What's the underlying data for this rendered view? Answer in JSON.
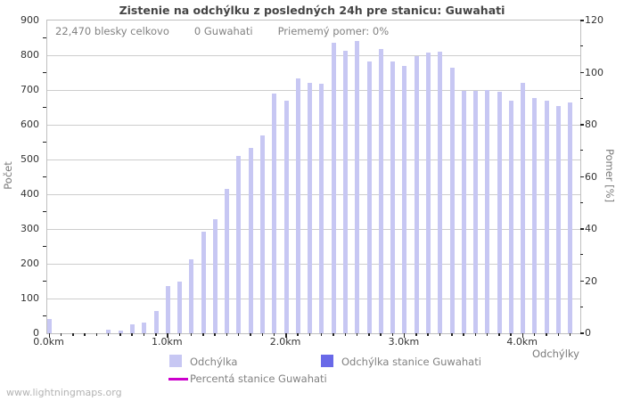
{
  "page": {
    "watermark": "www.lightningmaps.org"
  },
  "chart": {
    "title": "Zistenie na odchýlku z posledných 24h pre stanicu: Guwahati",
    "stats": {
      "total": "22,470 blesky celkovo",
      "station": "0 Guwahati",
      "ratio": "Priememý pomer: 0%"
    },
    "ylabel_left": "Počet",
    "ylabel_right": "Pomer [%]",
    "xlabel": "Odchýlky",
    "legend": {
      "item1": "Odchýlka",
      "item2": "Odchýlka stanice Guwahati",
      "item3": "Percentá stanice Guwahati"
    },
    "colors": {
      "bar_light": "#c7c7f3",
      "bar_dark": "#6969e8",
      "percent_line": "#cc00cc",
      "gridline": "#cdcdcd"
    }
  },
  "chart_data": {
    "type": "bar",
    "title": "Zistenie na odchýlku z posledných 24h pre stanicu: Guwahati",
    "xlabel": "Odchýlky",
    "ylabel": "Počet",
    "y2label": "Pomer [%]",
    "x_unit": "km",
    "x": [
      0.0,
      0.1,
      0.2,
      0.3,
      0.4,
      0.5,
      0.6,
      0.7,
      0.8,
      0.9,
      1.0,
      1.1,
      1.2,
      1.3,
      1.4,
      1.5,
      1.6,
      1.7,
      1.8,
      1.9,
      2.0,
      2.1,
      2.2,
      2.3,
      2.4,
      2.5,
      2.6,
      2.7,
      2.8,
      2.9,
      3.0,
      3.1,
      3.2,
      3.3,
      3.4,
      3.5,
      3.6,
      3.7,
      3.8,
      3.9,
      4.0,
      4.1,
      4.2,
      4.3,
      4.4
    ],
    "series": [
      {
        "name": "Odchýlka",
        "color": "#c7c7f3",
        "axis": "left",
        "values": [
          40,
          0,
          0,
          0,
          0,
          10,
          8,
          25,
          32,
          64,
          135,
          148,
          212,
          292,
          327,
          415,
          510,
          533,
          568,
          690,
          670,
          733,
          720,
          718,
          835,
          813,
          842,
          783,
          818,
          783,
          768,
          798,
          808,
          810,
          763,
          697,
          698,
          699,
          695,
          670,
          720,
          676,
          670,
          653,
          665
        ]
      },
      {
        "name": "Odchýlka stanice Guwahati",
        "color": "#6969e8",
        "axis": "left",
        "values": [
          0,
          0,
          0,
          0,
          0,
          0,
          0,
          0,
          0,
          0,
          0,
          0,
          0,
          0,
          0,
          0,
          0,
          0,
          0,
          0,
          0,
          0,
          0,
          0,
          0,
          0,
          0,
          0,
          0,
          0,
          0,
          0,
          0,
          0,
          0,
          0,
          0,
          0,
          0,
          0,
          0,
          0,
          0,
          0,
          0
        ]
      },
      {
        "name": "Percentá stanice Guwahati",
        "color": "#cc00cc",
        "axis": "right",
        "values": [
          0,
          0,
          0,
          0,
          0,
          0,
          0,
          0,
          0,
          0,
          0,
          0,
          0,
          0,
          0,
          0,
          0,
          0,
          0,
          0,
          0,
          0,
          0,
          0,
          0,
          0,
          0,
          0,
          0,
          0,
          0,
          0,
          0,
          0,
          0,
          0,
          0,
          0,
          0,
          0,
          0,
          0,
          0,
          0,
          0
        ]
      }
    ],
    "ylim": [
      0,
      900
    ],
    "y2lim": [
      0,
      120
    ],
    "y_ticks": [
      0,
      100,
      200,
      300,
      400,
      500,
      600,
      700,
      800,
      900
    ],
    "y2_ticks": [
      0,
      20,
      40,
      60,
      80,
      100,
      120
    ],
    "x_major_ticks": [
      "0.0km",
      "1.0km",
      "2.0km",
      "3.0km",
      "4.0km"
    ],
    "grid": "horizontal",
    "legend_position": "bottom"
  }
}
